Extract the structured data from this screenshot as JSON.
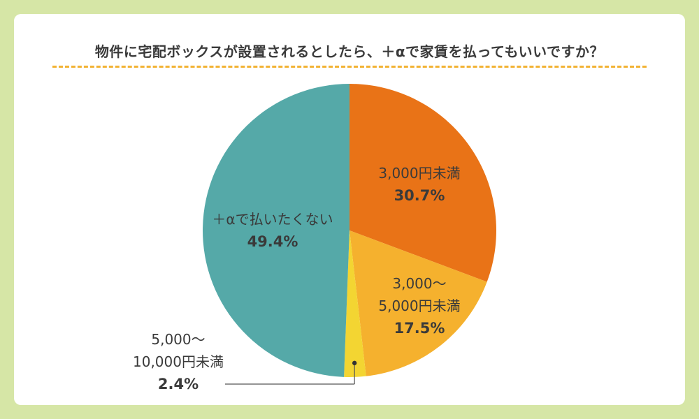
{
  "colors": {
    "background": "#d6e6a6",
    "card": "#ffffff",
    "title_rule": "#f2b233",
    "text": "#3a3a3a"
  },
  "chart_data": {
    "type": "pie",
    "title": "物件に宅配ボックスが設置されるとしたら、＋αで家賃を払ってもいいですか？",
    "slices": [
      {
        "label": "3,000円未満",
        "label_lines": [
          "3,000円未満"
        ],
        "value": 30.7,
        "value_label": "30.7%",
        "color": "#e97317"
      },
      {
        "label": "3,000〜5,000円未満",
        "label_lines": [
          "3,000〜",
          "5,000円未満"
        ],
        "value": 17.5,
        "value_label": "17.5%",
        "color": "#f5b12e"
      },
      {
        "label": "5,000〜10,000円未満",
        "label_lines": [
          "5,000〜",
          "10,000円未満"
        ],
        "value": 2.4,
        "value_label": "2.4%",
        "color": "#f3d532"
      },
      {
        "label": "＋αで払いたくない",
        "label_lines": [
          "＋αで払いたくない"
        ],
        "value": 49.4,
        "value_label": "49.4%",
        "color": "#55a9a8"
      }
    ]
  }
}
